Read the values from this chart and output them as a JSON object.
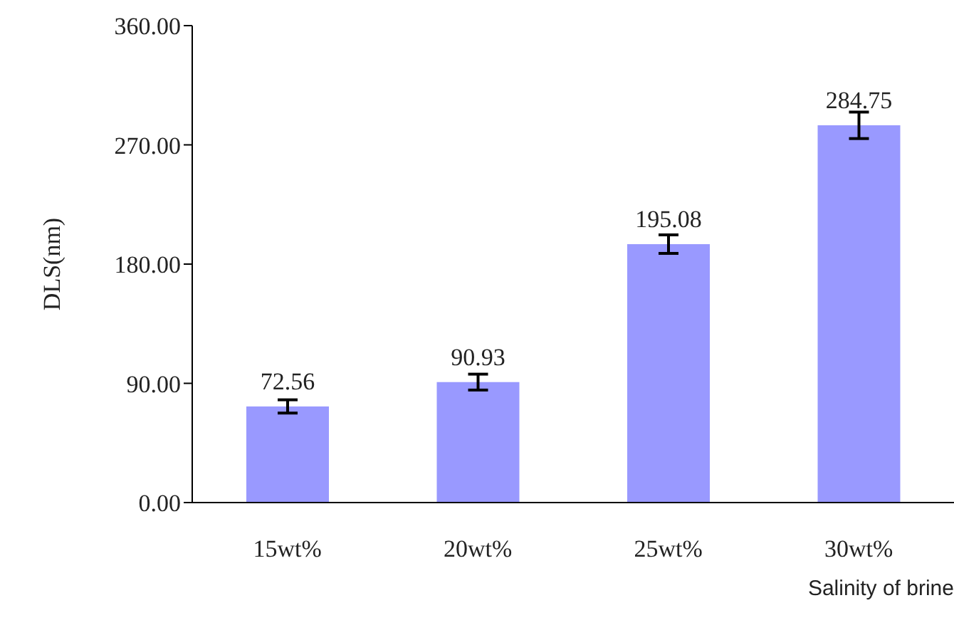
{
  "chart_data": {
    "type": "bar",
    "xlabel": "Salinity of brine",
    "ylabel": "DLS(nm)",
    "categories": [
      "15wt%",
      "20wt%",
      "25wt%",
      "30wt%"
    ],
    "values": [
      72.56,
      90.93,
      195.08,
      284.75
    ],
    "errors": [
      5,
      6,
      7,
      10
    ],
    "color": "#9999ff",
    "ylim": [
      0,
      360
    ],
    "yticks": [
      {
        "value": 0,
        "label": "0.00"
      },
      {
        "value": 90,
        "label": "90.00"
      },
      {
        "value": 180,
        "label": "180.00"
      },
      {
        "value": 270,
        "label": "270.00"
      },
      {
        "value": 360,
        "label": "360.00"
      }
    ],
    "data_labels": true,
    "grid": false,
    "legend": false
  }
}
